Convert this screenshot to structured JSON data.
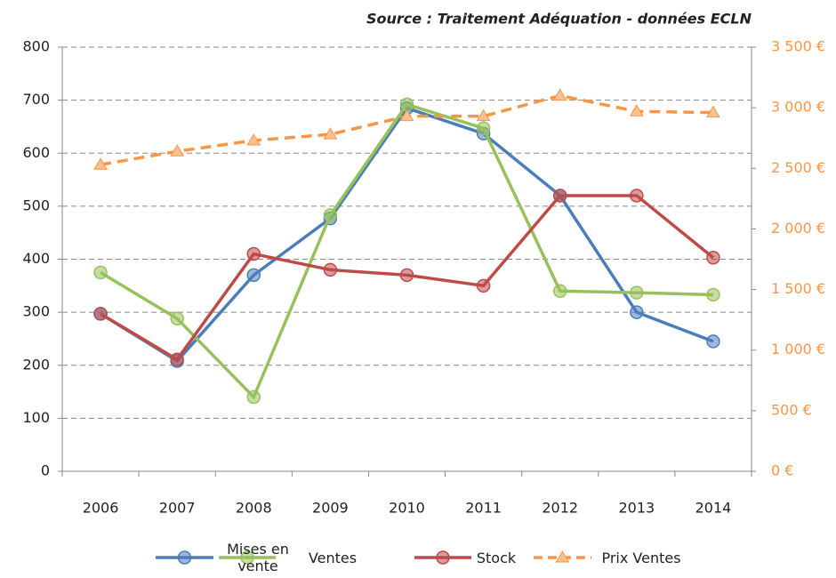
{
  "chart_data": {
    "type": "line",
    "subtitle": "Source : Traitement Adéquation - données ECLN",
    "categories": [
      "2006",
      "2007",
      "2008",
      "2009",
      "2010",
      "2011",
      "2012",
      "2013",
      "2014"
    ],
    "series": [
      {
        "name": "Mises en vente",
        "color": "#4a7ebb",
        "values": [
          297,
          208,
          370,
          477,
          685,
          637,
          520,
          300,
          245
        ]
      },
      {
        "name": "Ventes",
        "color": "#98c15b",
        "values": [
          375,
          288,
          140,
          483,
          692,
          647,
          340,
          337,
          333
        ]
      },
      {
        "name": "Stock",
        "color": "#be4b48",
        "values": [
          297,
          211,
          410,
          380,
          370,
          350,
          520,
          520,
          403
        ]
      },
      {
        "name": "Prix Ventes",
        "color": "#f79646",
        "axis": "y2",
        "dashed": true,
        "values": [
          2530,
          2640,
          2730,
          2780,
          2930,
          2930,
          3100,
          2970,
          2960
        ]
      }
    ],
    "ylim": [
      0,
      800
    ],
    "yticks": [
      0,
      100,
      200,
      300,
      400,
      500,
      600,
      700,
      800
    ],
    "y2lim": [
      0,
      3500
    ],
    "y2ticks": [
      {
        "value": 0,
        "label": "0 €"
      },
      {
        "value": 500,
        "label": "500 €"
      },
      {
        "value": 1000,
        "label": "1 000 €"
      },
      {
        "value": 1500,
        "label": "1 500 €"
      },
      {
        "value": 2000,
        "label": "2 000 €"
      },
      {
        "value": 2500,
        "label": "2 500 €"
      },
      {
        "value": 3000,
        "label": "3 000 €"
      },
      {
        "value": 3500,
        "label": "3 500 €"
      }
    ],
    "grid": true,
    "legend": "bottom"
  }
}
